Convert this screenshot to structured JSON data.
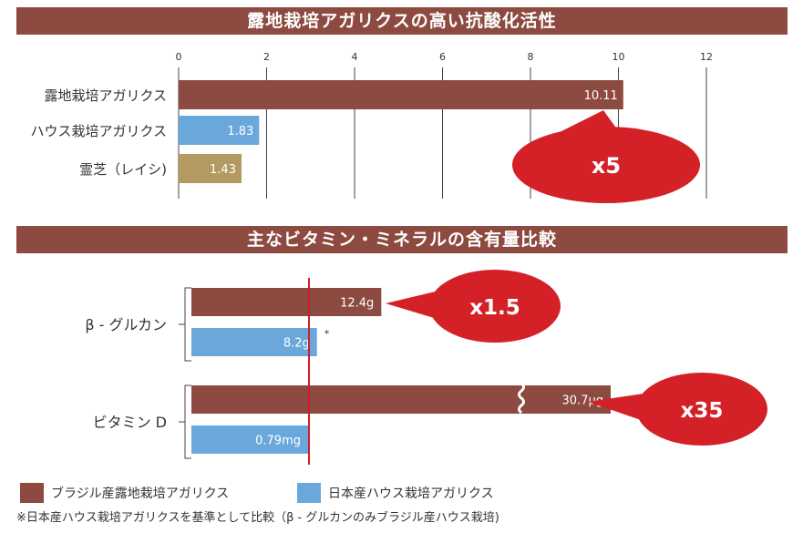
{
  "colors": {
    "brown": "#8c4a40",
    "blue": "#6aa8dc",
    "gold": "#b39a62",
    "red": "#d42128",
    "accent_line": "#cc1f2a"
  },
  "chart_data": [
    {
      "type": "bar",
      "orientation": "horizontal",
      "title": "露地栽培アガリクスの高い抗酸化活性",
      "categories": [
        "露地栽培アガリクス",
        "ハウス栽培アガリクス",
        "霊芝（レイシ)"
      ],
      "values": [
        10.11,
        1.83,
        1.43
      ],
      "value_labels": [
        "10.11",
        "1.83",
        "1.43"
      ],
      "bar_colors": [
        "brown",
        "blue",
        "gold"
      ],
      "xlim": [
        0,
        12
      ],
      "ticks": [
        "0",
        "2",
        "4",
        "6",
        "8",
        "10",
        "12"
      ],
      "grid": true,
      "callout": "x5"
    },
    {
      "type": "bar",
      "orientation": "horizontal",
      "title": "主なビタミン・ミネラルの含有量比較",
      "groups": [
        {
          "label": "β - グルカン",
          "bars": [
            {
              "series": "ブラジル産露地栽培アガリクス",
              "value": 12.4,
              "label": "12.4g"
            },
            {
              "series": "日本産ハウス栽培アガリクス",
              "value": 8.2,
              "label": "8.2g",
              "note": "*"
            }
          ],
          "callout": "x1.5"
        },
        {
          "label": "ビタミン D",
          "bars": [
            {
              "series": "ブラジル産露地栽培アガリクス",
              "value": 30.7,
              "label": "30.7μg",
              "axis_break": true
            },
            {
              "series": "日本産ハウス栽培アガリクス",
              "value": 0.79,
              "label": "0.79mg"
            }
          ],
          "callout": "x35"
        }
      ],
      "legend": [
        {
          "label": "ブラジル産露地栽培アガリクス",
          "color": "brown"
        },
        {
          "label": "日本産ハウス栽培アガリクス",
          "color": "blue"
        }
      ],
      "footnote": "※日本産ハウス栽培アガリクスを基準として比較（β - グルカンのみブラジル産ハウス栽培)"
    }
  ]
}
